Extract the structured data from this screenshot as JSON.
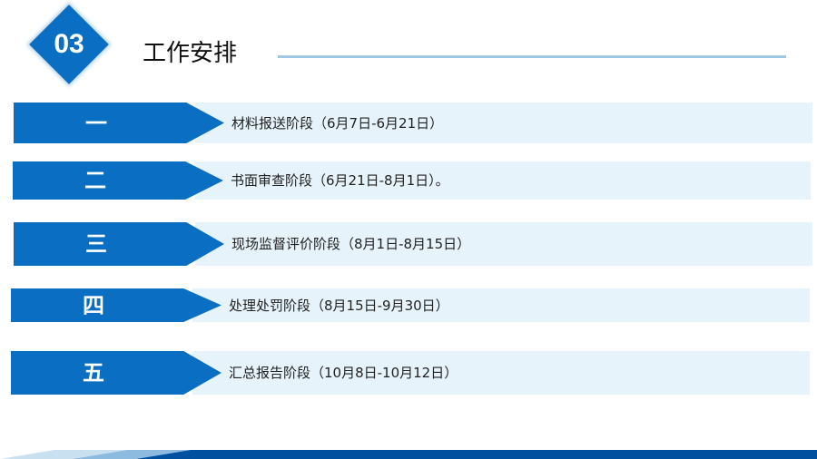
{
  "header": {
    "section_number": "03",
    "title": "工作安排"
  },
  "stages": [
    {
      "number": "一",
      "text": "材料报送阶段（6月7日-6月21日）"
    },
    {
      "number": "二",
      "text": "书面审查阶段（6月21日-8月1日）。"
    },
    {
      "number": "三",
      "text": "现场监督评价阶段（8月1日-8月15日）"
    },
    {
      "number": "四",
      "text": "处理处罚阶段（8月15日-9月30日）"
    },
    {
      "number": "五",
      "text": "汇总报告阶段（10月8日-10月12日）"
    }
  ],
  "colors": {
    "accent": "#0a6fc2",
    "band": "#e6f3fb",
    "footer": "#0050a0"
  }
}
